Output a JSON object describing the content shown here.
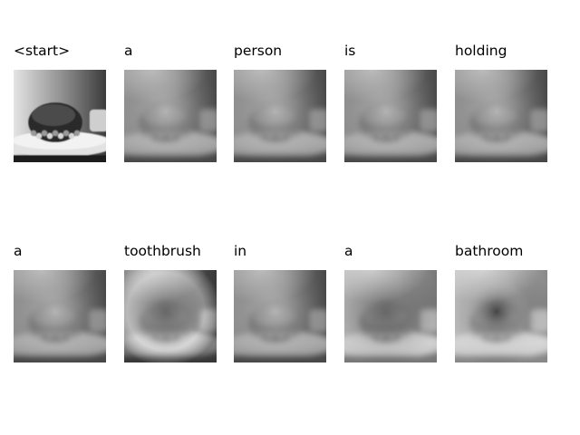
{
  "panels": [
    {
      "word": "<start>",
      "attention": "none"
    },
    {
      "word": "a",
      "attention": "diffuse"
    },
    {
      "word": "person",
      "attention": "diffuse"
    },
    {
      "word": "is",
      "attention": "diffuse"
    },
    {
      "word": "holding",
      "attention": "diffuse"
    },
    {
      "word": "a",
      "attention": "diffuse"
    },
    {
      "word": "toothbrush",
      "attention": "edges"
    },
    {
      "word": "in",
      "attention": "diffuse"
    },
    {
      "word": "a",
      "attention": "center"
    },
    {
      "word": "bathroom",
      "attention": "center-dark"
    }
  ]
}
